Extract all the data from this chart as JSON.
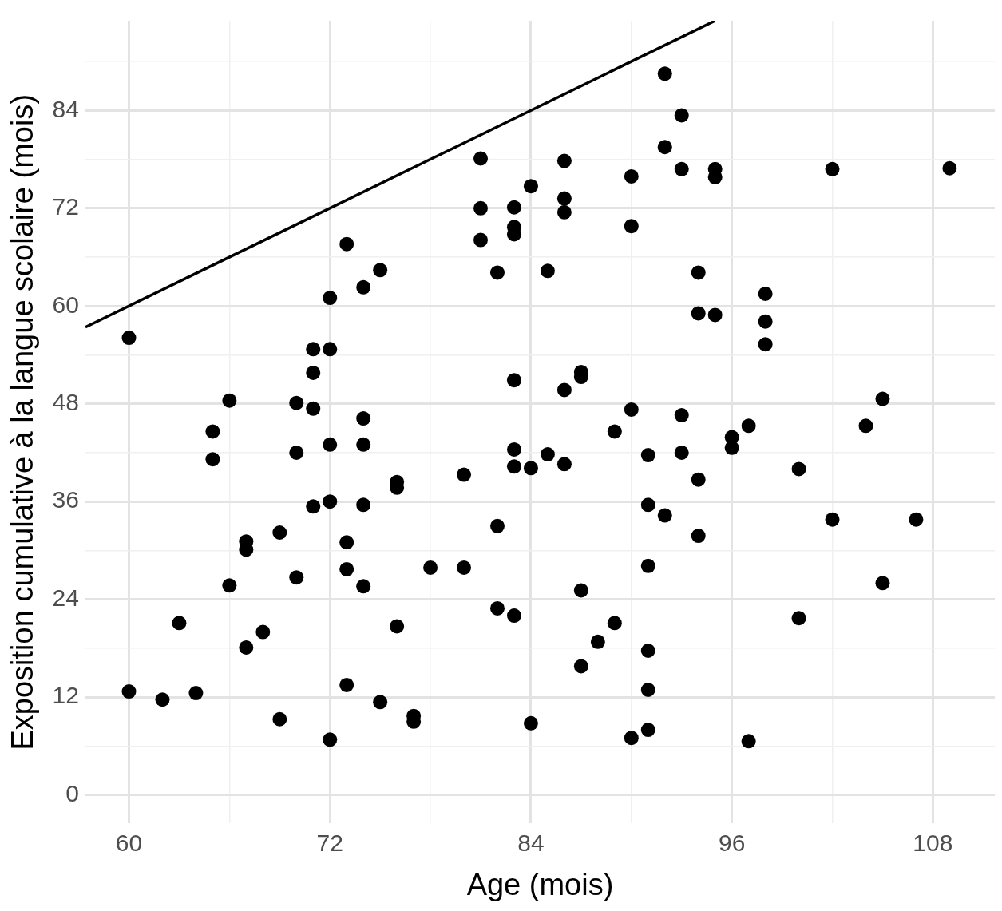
{
  "chart_data": {
    "type": "scatter",
    "xlabel": "Age (mois)",
    "ylabel": "Exposition cumulative à la langue scolaire (mois)",
    "xlim": [
      57.4,
      111.7
    ],
    "ylim": [
      -3.5,
      95
    ],
    "xticks": [
      60,
      {
        "value": 66,
        "label": null
      },
      72,
      {
        "value": 78,
        "label": null
      },
      84,
      {
        "value": 90,
        "label": null
      },
      96,
      {
        "value": 102,
        "label": null
      },
      108
    ],
    "yticks": [
      0,
      {
        "value": 6,
        "label": null
      },
      12,
      {
        "value": 18,
        "label": null
      },
      24,
      {
        "value": 30,
        "label": null
      },
      36,
      {
        "value": 42,
        "label": null
      },
      48,
      {
        "value": 54,
        "label": null
      },
      60,
      {
        "value": 66,
        "label": null
      },
      72,
      {
        "value": 78,
        "label": null
      },
      84,
      {
        "value": 90,
        "label": null
      }
    ],
    "grid": true,
    "legend": false,
    "marker": "circle",
    "series": [
      {
        "color": "#000000",
        "x": [
          60,
          60,
          62,
          63,
          64,
          65,
          65,
          66,
          66,
          67,
          67,
          67,
          68,
          69,
          69,
          70,
          70,
          70,
          71,
          71,
          71,
          71,
          72,
          72,
          72,
          72,
          72,
          73,
          73,
          73,
          73,
          74,
          74,
          74,
          74,
          74,
          75,
          75,
          76,
          76,
          76,
          77,
          77,
          78,
          80,
          80,
          81,
          81,
          81,
          82,
          82,
          82,
          83,
          83,
          83,
          83,
          83,
          83,
          83,
          84,
          84,
          84,
          85,
          85,
          86,
          86,
          86,
          86,
          86,
          87,
          87,
          87,
          87,
          88,
          89,
          89,
          90,
          90,
          90,
          90,
          91,
          91,
          91,
          91,
          91,
          91,
          92,
          92,
          92,
          93,
          93,
          93,
          93,
          94,
          94,
          94,
          94,
          95,
          95,
          95,
          96,
          96,
          97,
          97,
          98,
          98,
          98,
          100,
          100,
          102,
          102,
          104,
          105,
          105,
          107,
          109
        ],
        "values": [
          56.1,
          12.7,
          11.7,
          21.1,
          12.5,
          44.6,
          41.2,
          48.4,
          25.7,
          31.1,
          30.1,
          18.1,
          20.0,
          32.2,
          9.3,
          48.1,
          42.0,
          26.7,
          54.7,
          51.8,
          47.4,
          35.4,
          61.0,
          54.7,
          43.0,
          36.0,
          6.8,
          67.6,
          31.0,
          27.7,
          13.5,
          62.3,
          46.2,
          43.0,
          35.6,
          25.6,
          64.4,
          11.4,
          38.4,
          37.7,
          20.7,
          9.7,
          9.0,
          27.9,
          39.3,
          27.9,
          78.1,
          72.0,
          68.1,
          64.1,
          33.0,
          22.9,
          72.1,
          69.7,
          68.8,
          50.9,
          42.4,
          40.3,
          22.0,
          74.7,
          40.1,
          8.8,
          64.3,
          41.8,
          77.8,
          73.2,
          71.5,
          49.7,
          40.6,
          51.9,
          51.3,
          25.1,
          15.8,
          18.8,
          44.6,
          21.1,
          75.9,
          69.8,
          47.3,
          7.0,
          41.7,
          35.6,
          28.1,
          17.7,
          12.9,
          8.0,
          88.5,
          79.5,
          34.3,
          83.4,
          76.8,
          46.6,
          42.0,
          64.1,
          59.1,
          38.7,
          31.8,
          76.8,
          75.8,
          58.9,
          43.9,
          42.6,
          45.3,
          6.6,
          61.5,
          58.1,
          55.3,
          40.0,
          21.7,
          76.8,
          33.8,
          45.3,
          48.6,
          26.0,
          33.8,
          76.9
        ]
      },
      {
        "type": "line",
        "color": "#000000",
        "line_style": "solid",
        "marker": "none",
        "x": [
          57.4,
          95
        ],
        "values": [
          57.4,
          95
        ]
      }
    ]
  }
}
